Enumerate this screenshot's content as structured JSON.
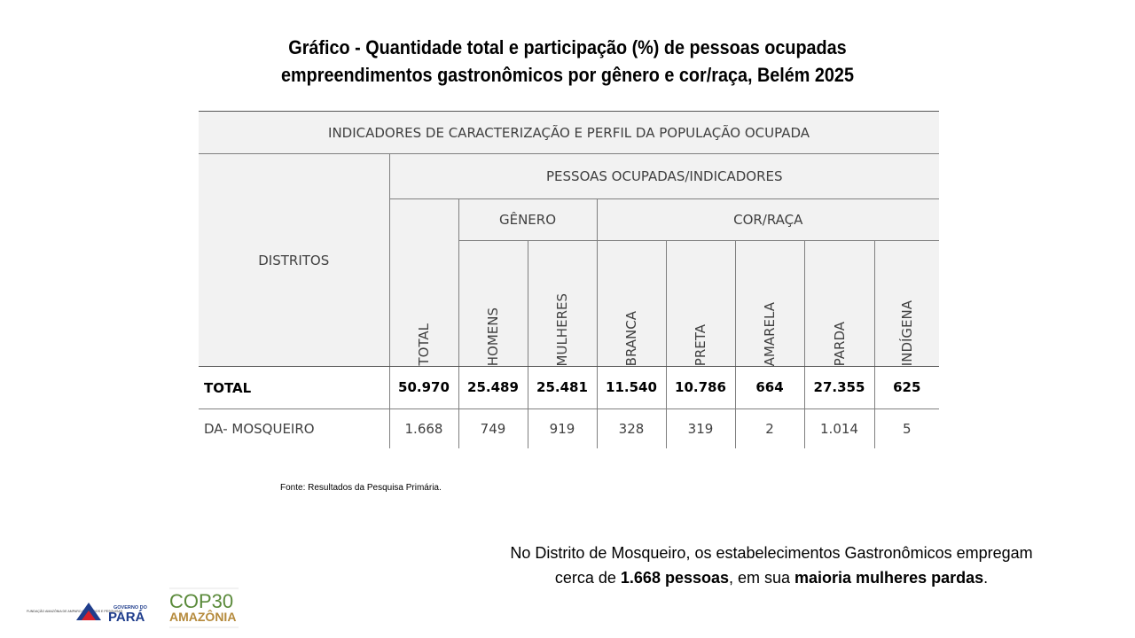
{
  "title": {
    "line1": "Gráfico - Quantidade total e participação (%) de pessoas ocupadas",
    "line2": "empreendimentos gastronômicos por gênero e cor/raça, Belém 2025"
  },
  "table": {
    "main_header": "INDICADORES DE CARACTERIZAÇÃO E PERFIL DA POPULAÇÃO OCUPADA",
    "row_header": "DISTRITOS",
    "group_header": "PESSOAS OCUPADAS/INDICADORES",
    "genero_header": "GÊNERO",
    "cor_header": "COR/RAÇA",
    "columns": [
      "TOTAL",
      "HOMENS",
      "MULHERES",
      "BRANCA",
      "PRETA",
      "AMARELA",
      "PARDA",
      "INDÍGENA"
    ],
    "rows": [
      {
        "label": "TOTAL",
        "values": [
          "50.970",
          "25.489",
          "25.481",
          "11.540",
          "10.786",
          "664",
          "27.355",
          "625"
        ]
      },
      {
        "label": "DA- MOSQUEIRO",
        "values": [
          "1.668",
          "749",
          "919",
          "328",
          "319",
          "2",
          "1.014",
          "5"
        ]
      }
    ]
  },
  "source": "Fonte: Resultados da Pesquisa Primária.",
  "note": {
    "part1": "No Distrito de Mosqueiro, os estabelecimentos Gastronômicos empregam",
    "part2": "cerca de ",
    "bold1": "1.668 pessoas",
    "part3": ", em sua ",
    "bold2": "maioria mulheres pardas",
    "part4": "."
  },
  "logos": {
    "fapespa_text": "FUNDAÇÃO AMAZÔNIA DE AMPARO A ESTUDOS E PESQUISAS",
    "governo_small": "GOVERNO DO",
    "governo_big": "PARÁ",
    "cop_line1": "COP30",
    "cop_line2": "AMAZÔNIA",
    "colors": {
      "blue": "#1f3d8c",
      "red": "#d6202a",
      "cop_green": "#5a8a3a",
      "cop_gold": "#b58a3c"
    }
  }
}
